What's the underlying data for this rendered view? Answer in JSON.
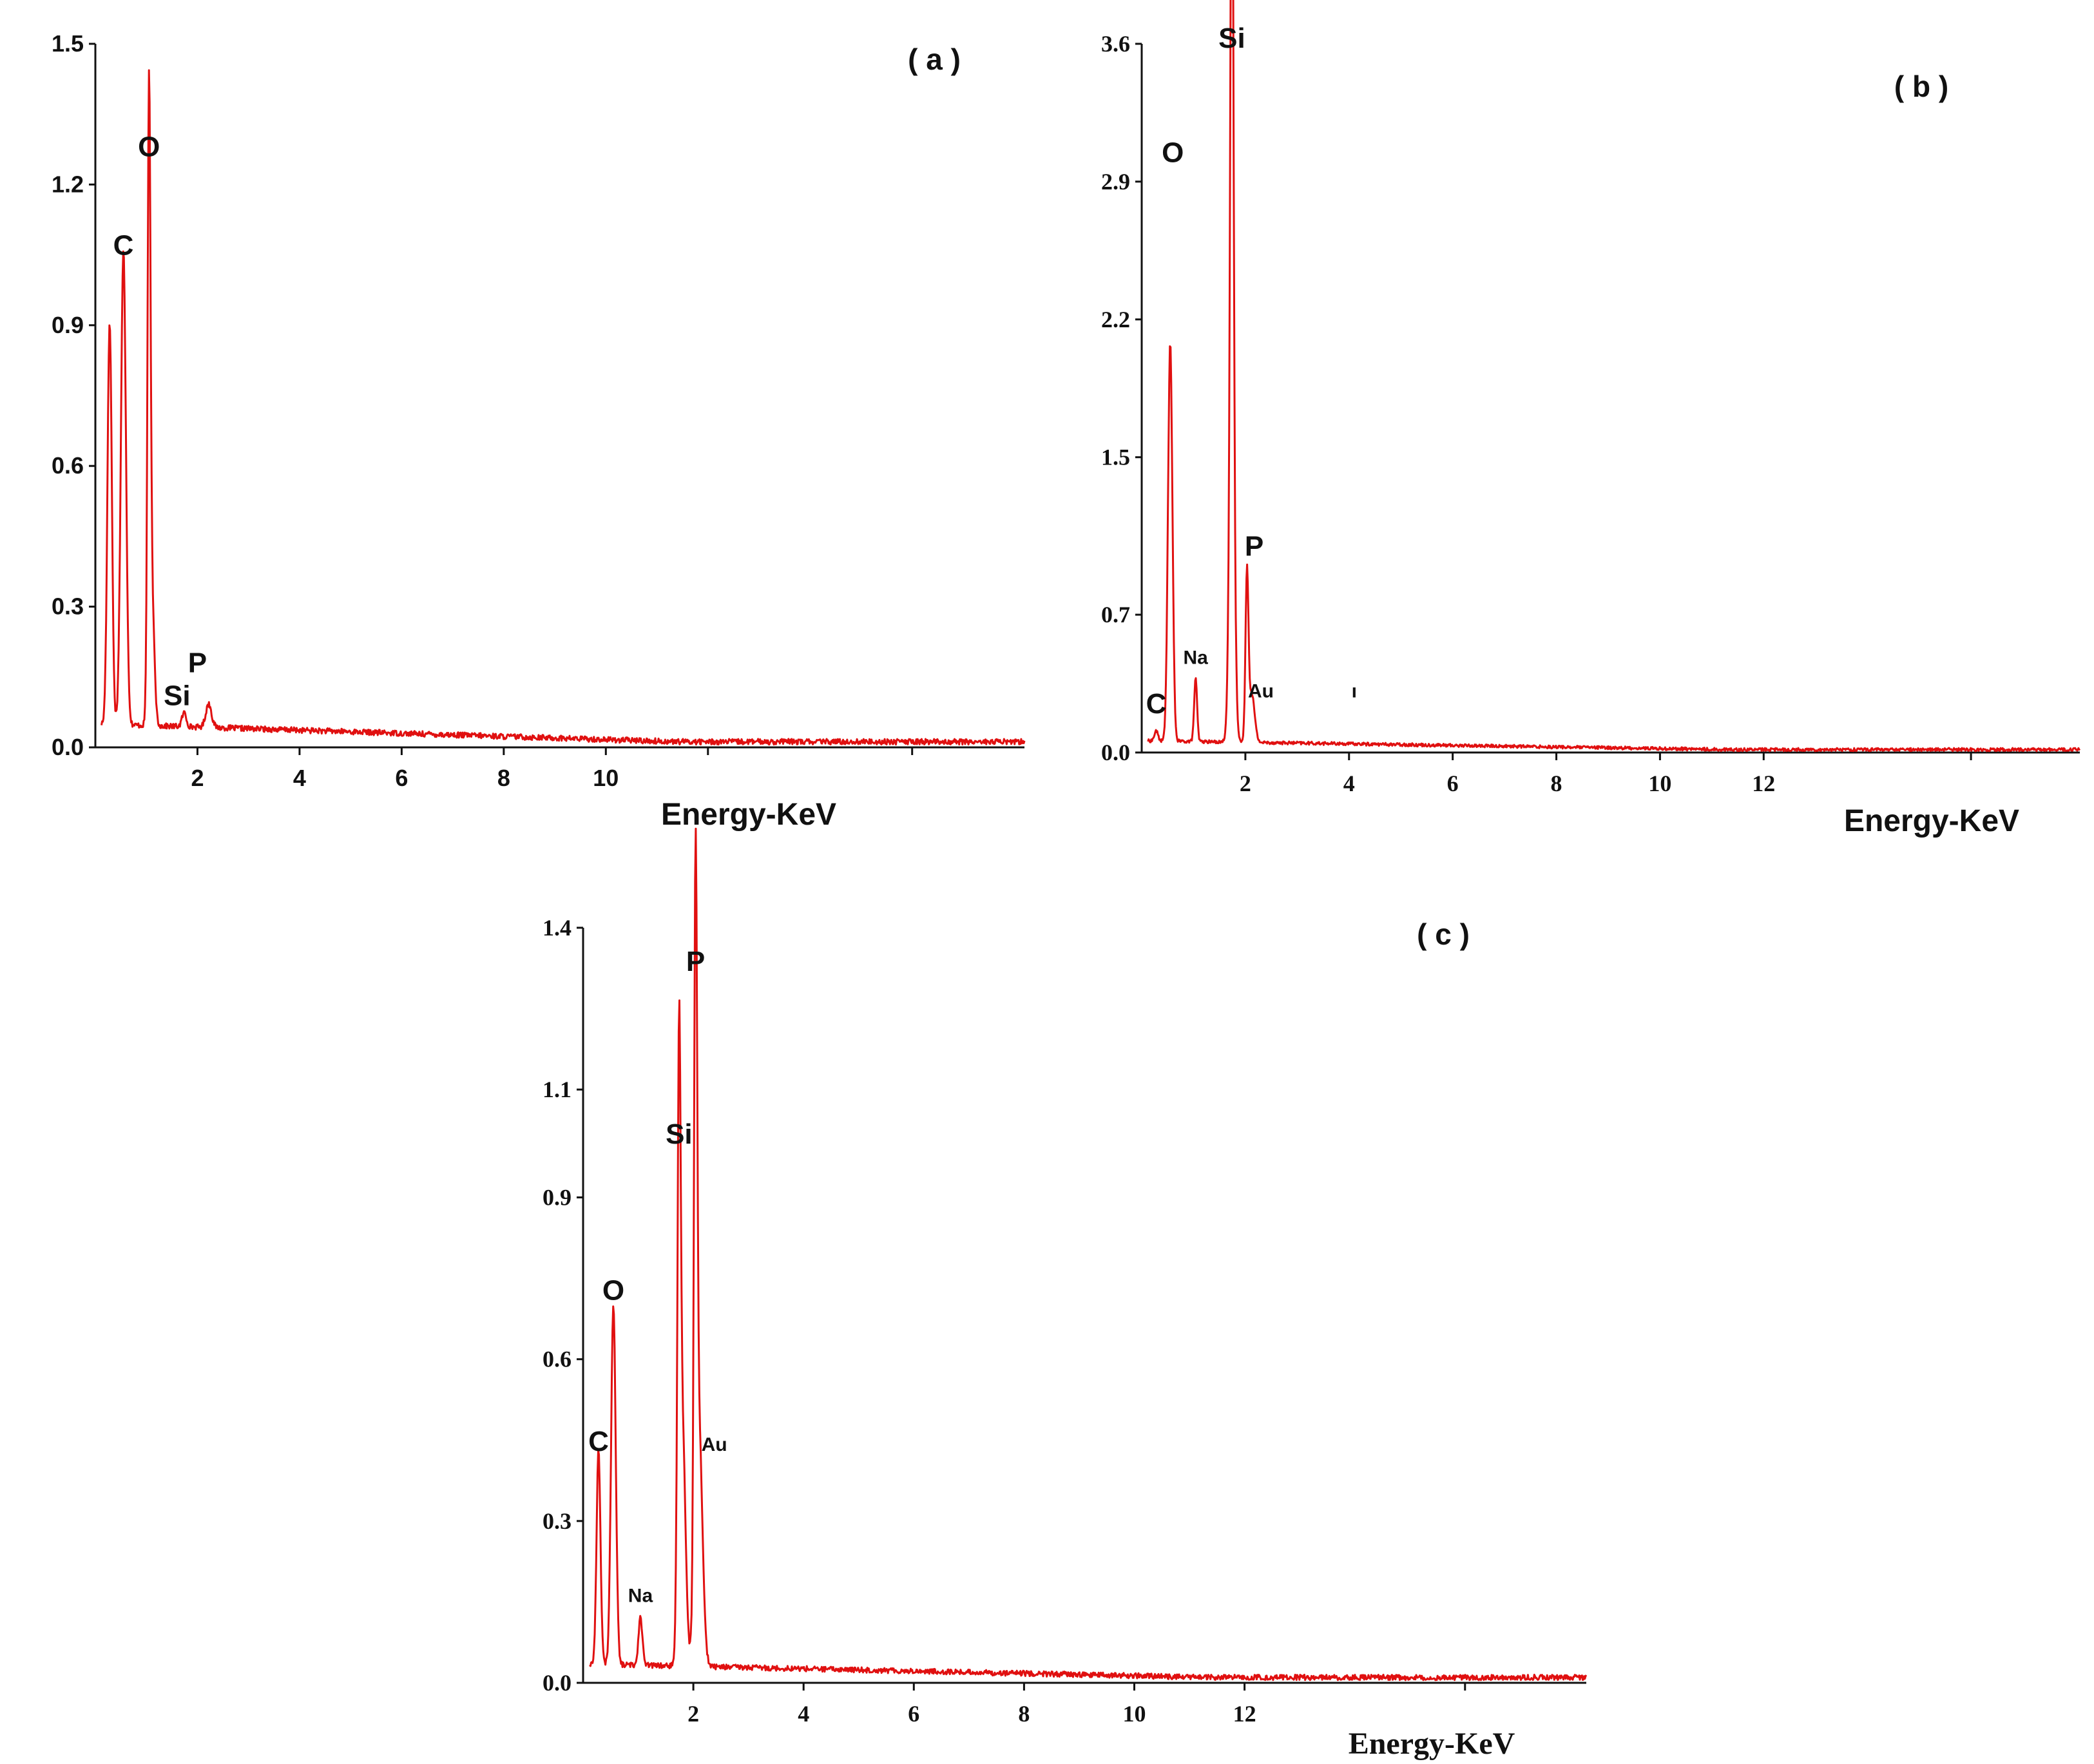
{
  "colors": {
    "spectrum": "#e01010",
    "axis": "#111111",
    "background": "#ffffff"
  },
  "chart_data": [
    {
      "panel": "a",
      "type": "line",
      "panel_label": "( a )",
      "xlabel": "Energy-KeV",
      "ylabel": "",
      "xlim": [
        0,
        18.2
      ],
      "ylim": [
        0,
        1.5
      ],
      "x_ticks": [
        2,
        4,
        6,
        8,
        10
      ],
      "x_tick_labels": [
        "2",
        "4",
        "6",
        "8",
        "10"
      ],
      "extra_minor_ticks": [
        12,
        16
      ],
      "y_ticks": [
        0.0,
        0.3,
        0.6,
        0.9,
        1.2,
        1.5
      ],
      "y_tick_labels": [
        "0.0",
        "0.3",
        "0.6",
        "0.9",
        "1.2",
        "1.5"
      ],
      "baseline": {
        "start": 0.05,
        "end": 0.012,
        "noise": 0.006
      },
      "peaks": [
        {
          "x": 0.28,
          "height": 0.86,
          "width": 0.06
        },
        {
          "x": 0.55,
          "height": 1.01,
          "width": 0.07
        },
        {
          "x": 1.05,
          "height": 1.22,
          "width": 0.04
        },
        {
          "x": 1.1,
          "height": 0.3,
          "width": 0.07
        },
        {
          "x": 1.74,
          "height": 0.03,
          "width": 0.06
        },
        {
          "x": 2.22,
          "height": 0.05,
          "width": 0.08
        }
      ],
      "annotations": [
        {
          "text": "O",
          "x": 1.05,
          "y": 1.26,
          "size": "big"
        },
        {
          "text": "C",
          "x": 0.55,
          "y": 1.05,
          "size": "big"
        },
        {
          "text": "P",
          "x": 2.0,
          "y": 0.16,
          "size": "big"
        },
        {
          "text": "Si",
          "x": 1.6,
          "y": 0.09,
          "size": "big"
        }
      ]
    },
    {
      "panel": "b",
      "type": "line",
      "panel_label": "( b )",
      "xlabel": "Energy-KeV",
      "ylabel": "",
      "xlim": [
        0,
        18.1
      ],
      "ylim": [
        0,
        3.6
      ],
      "x_ticks": [
        2,
        4,
        6,
        8,
        10,
        12
      ],
      "x_tick_labels": [
        "2",
        "4",
        "6",
        "8",
        "10",
        "12"
      ],
      "extra_minor_ticks": [
        16
      ],
      "y_ticks": [
        0.0,
        0.7,
        1.5,
        2.2,
        2.9,
        3.6
      ],
      "y_tick_labels": [
        "0.0",
        "0.7",
        "1.5",
        "2.2",
        "2.9",
        "3.6"
      ],
      "baseline": {
        "start": 0.06,
        "end": 0.015,
        "noise": 0.008
      },
      "peaks": [
        {
          "x": 0.28,
          "height": 0.05,
          "width": 0.05
        },
        {
          "x": 0.55,
          "height": 2.02,
          "width": 0.06
        },
        {
          "x": 1.04,
          "height": 0.32,
          "width": 0.04
        },
        {
          "x": 1.74,
          "height": 3.48,
          "width": 0.04
        },
        {
          "x": 1.74,
          "height": 1.7,
          "width": 0.07
        },
        {
          "x": 2.03,
          "height": 0.83,
          "width": 0.04
        },
        {
          "x": 2.12,
          "height": 0.25,
          "width": 0.08
        }
      ],
      "annotations": [
        {
          "text": "Si",
          "x": 1.74,
          "y": 3.58,
          "size": "big"
        },
        {
          "text": "O",
          "x": 0.6,
          "y": 3.0,
          "size": "big"
        },
        {
          "text": "P",
          "x": 2.17,
          "y": 1.0,
          "size": "big"
        },
        {
          "text": "Na",
          "x": 1.04,
          "y": 0.45,
          "size": "small"
        },
        {
          "text": "Au",
          "x": 2.3,
          "y": 0.28,
          "size": "small"
        },
        {
          "text": "C",
          "x": 0.28,
          "y": 0.2,
          "size": "big"
        },
        {
          "text": "ı",
          "x": 4.1,
          "y": 0.28,
          "size": "small"
        }
      ]
    },
    {
      "panel": "c",
      "type": "line",
      "panel_label": "( c )",
      "xlabel": "Energy-KeV",
      "ylabel": "",
      "xlim": [
        0,
        18.2
      ],
      "ylim": [
        0,
        1.4
      ],
      "x_ticks": [
        2,
        4,
        6,
        8,
        10,
        12
      ],
      "x_tick_labels": [
        "2",
        "4",
        "6",
        "8",
        "10",
        "12"
      ],
      "extra_minor_ticks": [
        16
      ],
      "y_ticks": [
        0.0,
        0.3,
        0.6,
        0.9,
        1.1,
        1.4
      ],
      "y_tick_labels": [
        "0.0",
        "0.3",
        "0.6",
        "0.9",
        "1.1",
        "1.4"
      ],
      "baseline": {
        "start": 0.035,
        "end": 0.01,
        "noise": 0.005
      },
      "peaks": [
        {
          "x": 0.28,
          "height": 0.4,
          "width": 0.05
        },
        {
          "x": 0.55,
          "height": 0.67,
          "width": 0.06
        },
        {
          "x": 1.04,
          "height": 0.09,
          "width": 0.05
        },
        {
          "x": 1.74,
          "height": 0.97,
          "width": 0.04
        },
        {
          "x": 1.8,
          "height": 0.45,
          "width": 0.08
        },
        {
          "x": 2.04,
          "height": 1.26,
          "width": 0.04
        },
        {
          "x": 2.1,
          "height": 0.45,
          "width": 0.09
        }
      ],
      "annotations": [
        {
          "text": "P",
          "x": 2.04,
          "y": 1.32,
          "size": "big"
        },
        {
          "text": "Si",
          "x": 1.74,
          "y": 1.0,
          "size": "big"
        },
        {
          "text": "O",
          "x": 0.55,
          "y": 0.71,
          "size": "big"
        },
        {
          "text": "C",
          "x": 0.28,
          "y": 0.43,
          "size": "big"
        },
        {
          "text": "Au",
          "x": 2.38,
          "y": 0.43,
          "size": "small"
        },
        {
          "text": "Na",
          "x": 1.04,
          "y": 0.15,
          "size": "small"
        }
      ]
    }
  ]
}
